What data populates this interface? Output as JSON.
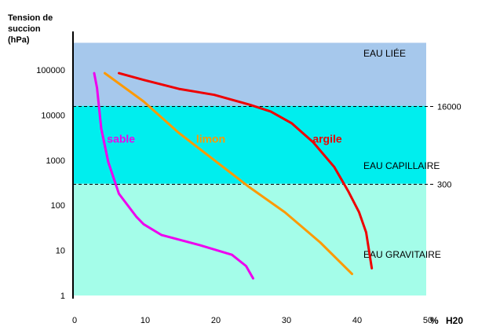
{
  "chart_data": {
    "type": "line",
    "ylabel": "Tension de succion (hPa)",
    "ylabel_lines": [
      "Tension  de",
      "succion",
      "(hPa)"
    ],
    "xlabel": "% H20",
    "y_scale": "log",
    "ylim": [
      1,
      400000
    ],
    "xlim": [
      0,
      50
    ],
    "x_ticks": [
      {
        "value": 0,
        "label": "0"
      },
      {
        "value": 10,
        "label": "10"
      },
      {
        "value": 20,
        "label": "20"
      },
      {
        "value": 30,
        "label": "30"
      },
      {
        "value": 40,
        "label": "40"
      },
      {
        "value": 50,
        "label": "50"
      }
    ],
    "x_unit_labels": [
      "%",
      "H20"
    ],
    "y_ticks": [
      {
        "value": 1,
        "label": "1"
      },
      {
        "value": 10,
        "label": "10"
      },
      {
        "value": 100,
        "label": "100"
      },
      {
        "value": 1000,
        "label": "1000"
      },
      {
        "value": 10000,
        "label": "10000"
      },
      {
        "value": 100000,
        "label": "100000"
      }
    ],
    "thresholds": [
      {
        "value": 16000,
        "label": "16000"
      },
      {
        "value": 300,
        "label": "300"
      }
    ],
    "zones": [
      {
        "label": "EAU  LIÉE",
        "from": 16000,
        "to": 400000,
        "color": "#a6c8ec"
      },
      {
        "label": "EAU  CAPILLAIRE",
        "from": 300,
        "to": 16000,
        "color": "#00eeee"
      },
      {
        "label": "EAU  GRAVITAIRE",
        "from": 1,
        "to": 300,
        "color": "#a4fde9"
      }
    ],
    "series": [
      {
        "name": "sable",
        "color": "#ee00ee",
        "label_pos": {
          "x": 6.8,
          "y": 3000
        },
        "points": [
          {
            "x": 3.0,
            "y": 85000
          },
          {
            "x": 3.4,
            "y": 40000
          },
          {
            "x": 4.0,
            "y": 5000
          },
          {
            "x": 5.0,
            "y": 900
          },
          {
            "x": 6.5,
            "y": 180
          },
          {
            "x": 9.0,
            "y": 55
          },
          {
            "x": 10.0,
            "y": 38
          },
          {
            "x": 12.5,
            "y": 22
          },
          {
            "x": 18.0,
            "y": 13
          },
          {
            "x": 22.5,
            "y": 8
          },
          {
            "x": 24.5,
            "y": 4.5
          },
          {
            "x": 25.5,
            "y": 2.4
          }
        ]
      },
      {
        "name": "limon",
        "color": "#ff9900",
        "label_pos": {
          "x": 19.5,
          "y": 3000
        },
        "points": [
          {
            "x": 4.5,
            "y": 85000
          },
          {
            "x": 10.0,
            "y": 20000
          },
          {
            "x": 15.0,
            "y": 4000
          },
          {
            "x": 20.0,
            "y": 1000
          },
          {
            "x": 25.0,
            "y": 250
          },
          {
            "x": 30.0,
            "y": 70
          },
          {
            "x": 35.0,
            "y": 15
          },
          {
            "x": 39.5,
            "y": 3
          }
        ]
      },
      {
        "name": "argile",
        "color": "#ee0000",
        "label_pos": {
          "x": 36.0,
          "y": 3000
        },
        "points": [
          {
            "x": 6.5,
            "y": 85000
          },
          {
            "x": 10.0,
            "y": 60000
          },
          {
            "x": 15.0,
            "y": 38000
          },
          {
            "x": 20.0,
            "y": 28000
          },
          {
            "x": 25.0,
            "y": 17000
          },
          {
            "x": 28.0,
            "y": 12000
          },
          {
            "x": 31.0,
            "y": 6500
          },
          {
            "x": 34.0,
            "y": 2500
          },
          {
            "x": 37.0,
            "y": 700
          },
          {
            "x": 39.0,
            "y": 200
          },
          {
            "x": 40.5,
            "y": 70
          },
          {
            "x": 41.5,
            "y": 25
          },
          {
            "x": 42.3,
            "y": 4
          }
        ]
      }
    ]
  }
}
